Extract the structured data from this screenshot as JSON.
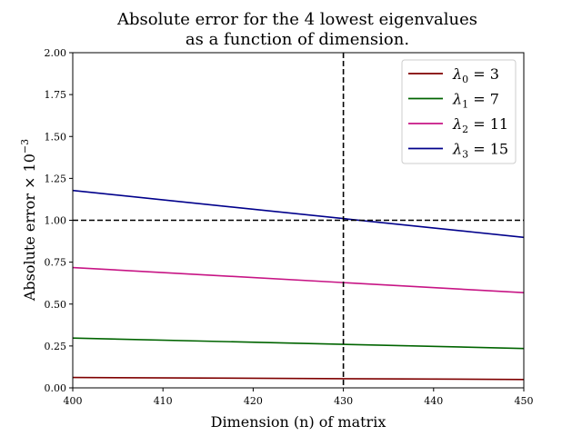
{
  "chart_data": {
    "type": "line",
    "title_lines": [
      "Absolute error for the 4 lowest eigenvalues",
      "as a function of dimension."
    ],
    "xlabel": "Dimension (n) of matrix",
    "ylabel": "Absolute error × 10",
    "ylabel_exponent": "−3",
    "xlim": [
      400,
      450
    ],
    "ylim": [
      0,
      2.0
    ],
    "x_ticks": [
      400,
      410,
      420,
      430,
      440,
      450
    ],
    "y_ticks": [
      0.0,
      0.25,
      0.5,
      0.75,
      1.0,
      1.25,
      1.5,
      1.75,
      2.0
    ],
    "x_tick_labels": [
      "400",
      "410",
      "420",
      "430",
      "440",
      "450"
    ],
    "y_tick_labels": [
      "0.00",
      "0.25",
      "0.50",
      "0.75",
      "1.00",
      "1.25",
      "1.50",
      "1.75",
      "2.00"
    ],
    "grid": false,
    "legend_position": "top-right",
    "series": [
      {
        "name": "λ",
        "sub": "0",
        "value_label": " = 3",
        "color": "#7f0000",
        "x": [
          400,
          450
        ],
        "y": [
          0.062,
          0.05
        ]
      },
      {
        "name": "λ",
        "sub": "1",
        "value_label": " = 7",
        "color": "#006400",
        "x": [
          400,
          450
        ],
        "y": [
          0.297,
          0.235
        ]
      },
      {
        "name": "λ",
        "sub": "2",
        "value_label": " = 11",
        "color": "#c71585",
        "x": [
          400,
          450
        ],
        "y": [
          0.718,
          0.568
        ]
      },
      {
        "name": "λ",
        "sub": "3",
        "value_label": " = 15",
        "color": "#00008b",
        "x": [
          400,
          450
        ],
        "y": [
          1.178,
          0.898
        ]
      }
    ],
    "reference_lines": [
      {
        "orientation": "horizontal",
        "value": 1.0,
        "style": "dashed",
        "color": "#000000"
      },
      {
        "orientation": "vertical",
        "value": 430,
        "style": "dashed",
        "color": "#000000"
      }
    ]
  }
}
